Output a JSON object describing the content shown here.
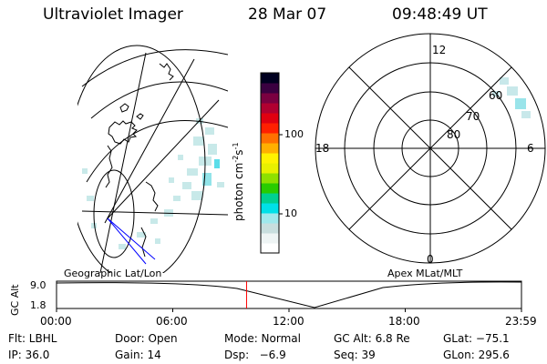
{
  "header": {
    "title": "Ultraviolet Imager",
    "date": "28 Mar 07",
    "time": "09:48:49 UT"
  },
  "colorbar": {
    "label_main": "photon cm",
    "label_sup1": "-2",
    "label_mid": "s",
    "label_sup2": "-1",
    "tick_100": "100",
    "tick_10": "10",
    "colors": [
      "#ffffff",
      "#eef4f4",
      "#c8dede",
      "#9fe8ec",
      "#00e0e8",
      "#00d090",
      "#28cc00",
      "#8ee000",
      "#e8f000",
      "#fff200",
      "#ffb000",
      "#ff7000",
      "#ff2000",
      "#e00010",
      "#b00030",
      "#7a0040",
      "#3a0040",
      "#000020"
    ]
  },
  "geo_map": {
    "label": "Geographic Lat/Lon"
  },
  "polar_map": {
    "label": "Apex MLat/MLT",
    "mlt_top": "12",
    "mlt_left": "18",
    "mlt_right": "6",
    "mlt_bottom": "0",
    "lat_60": "60",
    "lat_70": "70",
    "lat_80": "80"
  },
  "altitude_plot": {
    "ylabel": "GC Alt",
    "y_top": "9.0",
    "y_bottom": "1.8",
    "x_ticks": [
      "00:00",
      "06:00",
      "12:00",
      "18:00",
      "23:59"
    ],
    "current_marker_hours": 9.81,
    "marker_color": "#ff0000"
  },
  "info": {
    "row1": {
      "flt": "Flt: LBHL",
      "door": "Door: Open",
      "mode": "Mode: Normal",
      "gcalt": "GC Alt: 6.8 Re",
      "glat": "GLat: −75.1"
    },
    "row2": {
      "ip": "IP: 36.0",
      "gain": "Gain: 14",
      "dsp": "Dsp:   −6.9",
      "seq": "Seq: 39",
      "glon": "GLon: 295.6"
    }
  }
}
